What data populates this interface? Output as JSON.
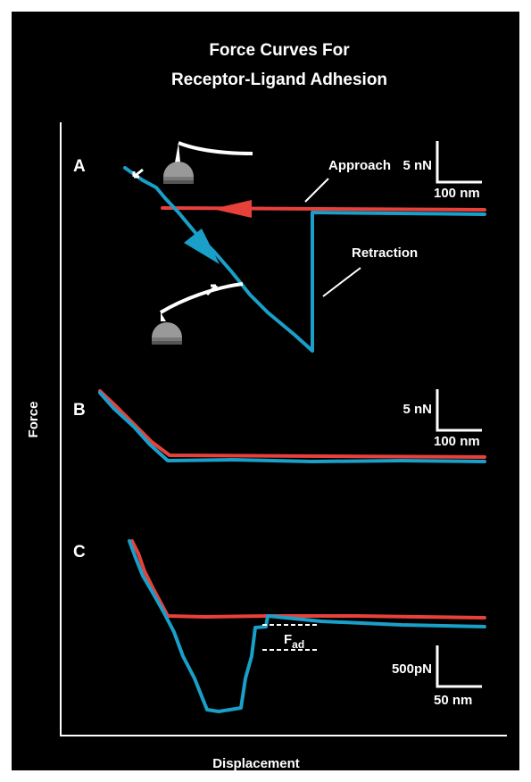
{
  "header": {
    "title_lines": [
      "Force Curves For",
      "Receptor-Ligand Adhesion"
    ]
  },
  "axes": {
    "y_label": "Force",
    "x_label": "Displacement"
  },
  "panels": [
    {
      "label": "A",
      "annotations": [
        "Approach",
        "Retraction"
      ],
      "scale": {
        "force": "5 nN",
        "distance": "100 nm"
      }
    },
    {
      "label": "B",
      "scale": {
        "force": "5 nN",
        "distance": "100 nm"
      }
    },
    {
      "label": "C",
      "scale": {
        "force": "500pN",
        "distance": "50 nm"
      },
      "adhesion_force": {
        "symbol": "F",
        "subscript": "ad"
      }
    }
  ]
}
